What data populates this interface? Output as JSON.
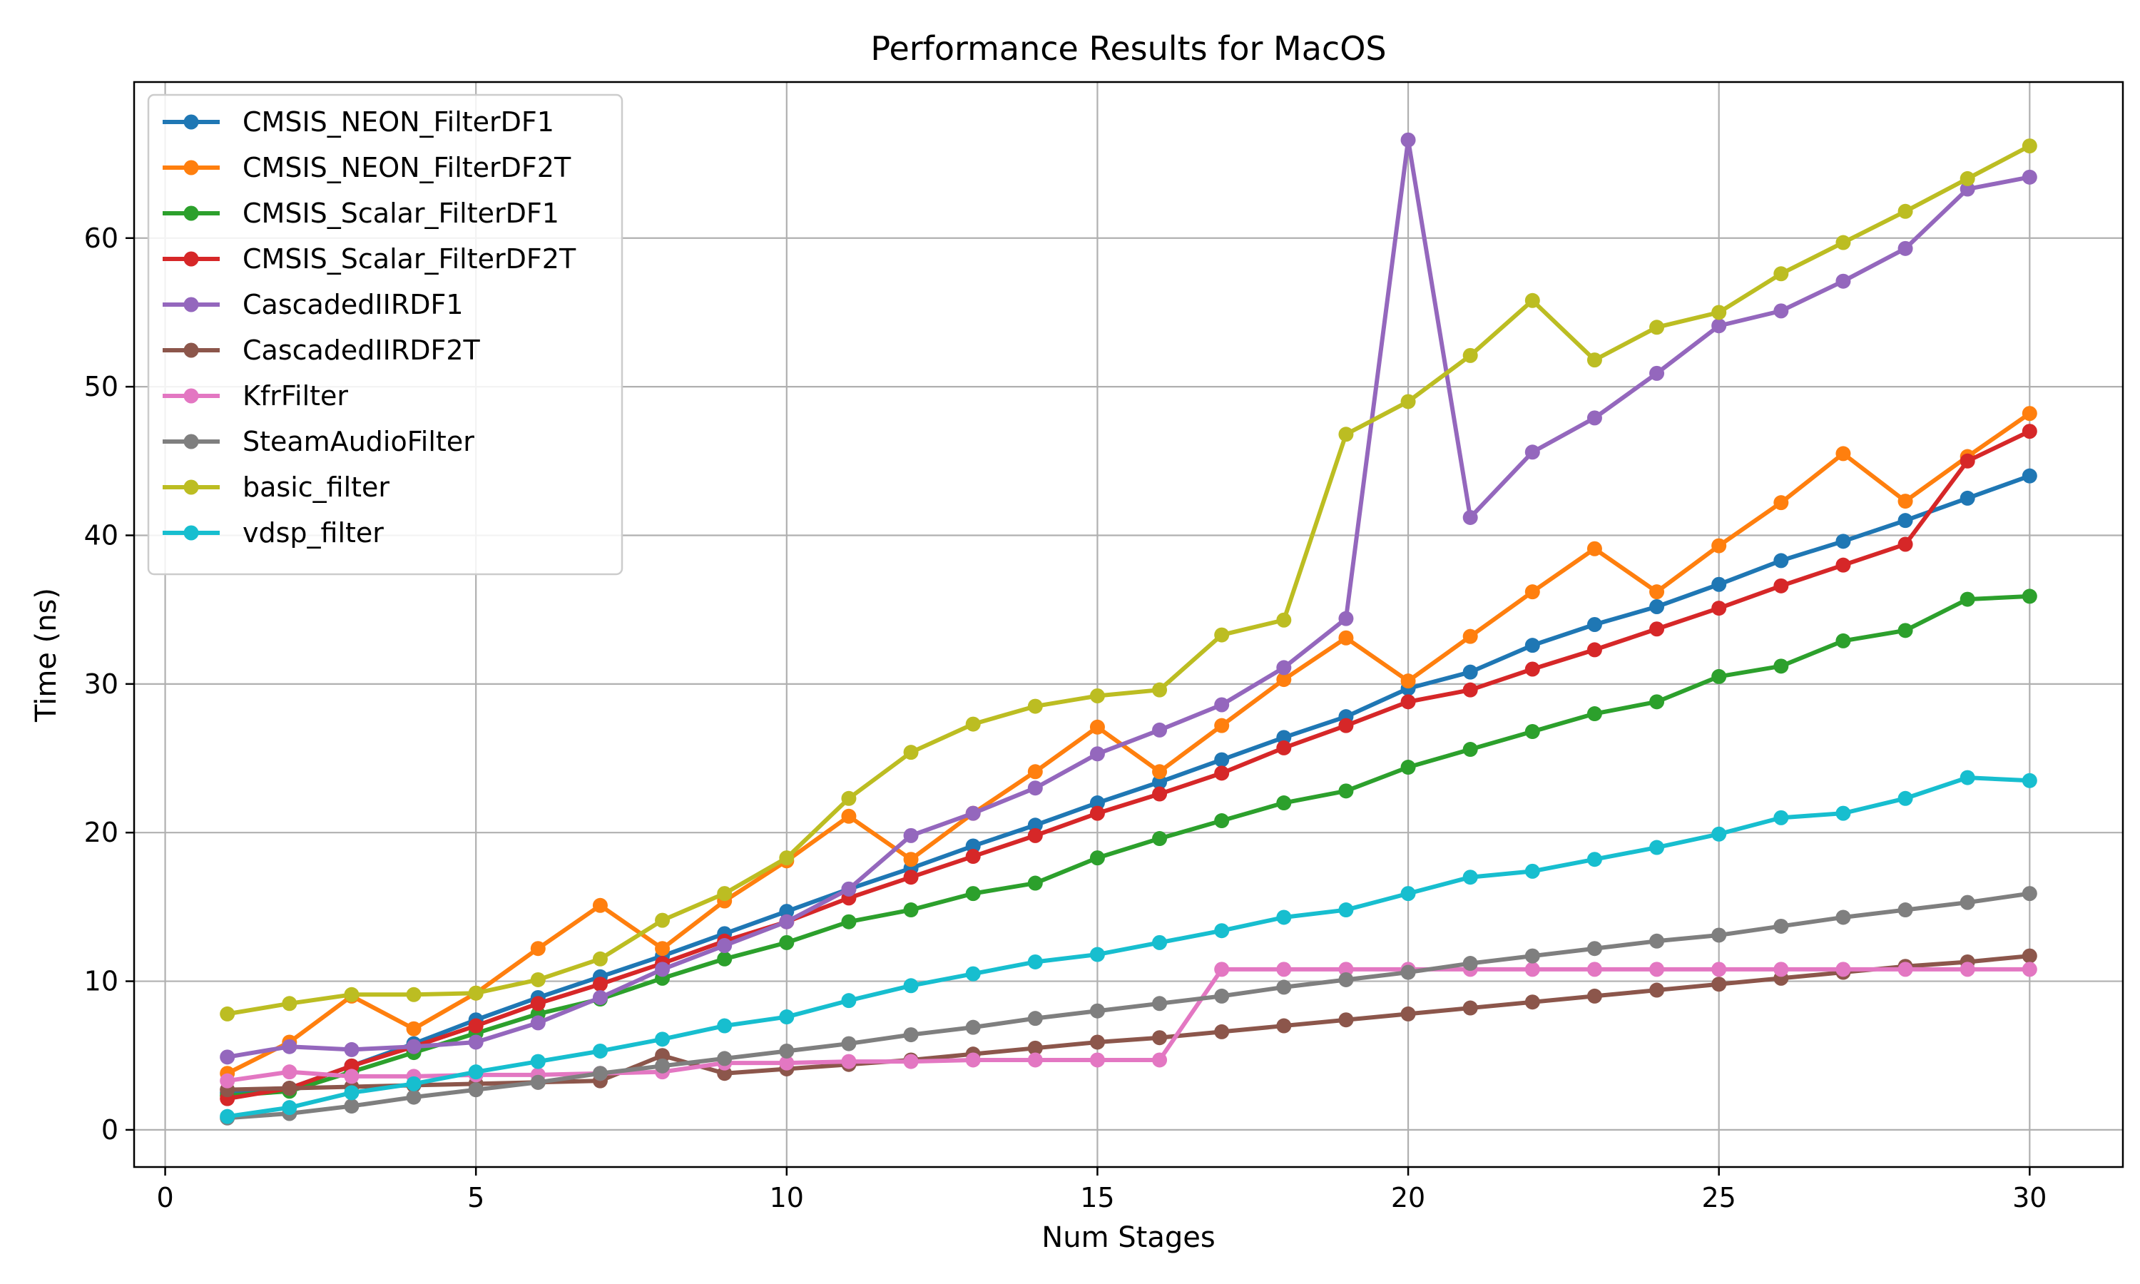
{
  "chart_data": {
    "type": "line",
    "title": "Performance Results for MacOS",
    "xlabel": "Num Stages",
    "ylabel": "Time (ns)",
    "xlim": [
      -0.5,
      31.5
    ],
    "ylim": [
      -2.5,
      70.5
    ],
    "xticks": [
      0,
      5,
      10,
      15,
      20,
      25,
      30
    ],
    "yticks": [
      0,
      10,
      20,
      30,
      40,
      50,
      60
    ],
    "grid": true,
    "legend_position": "top-left",
    "x": [
      1,
      2,
      3,
      4,
      5,
      6,
      7,
      8,
      9,
      10,
      11,
      12,
      13,
      14,
      15,
      16,
      17,
      18,
      19,
      20,
      21,
      22,
      23,
      24,
      25,
      26,
      27,
      28,
      29,
      30
    ],
    "series": [
      {
        "name": "CMSIS_NEON_FilterDF1",
        "color": "#1f77b4",
        "values": [
          2.5,
          2.8,
          4.3,
          5.8,
          7.4,
          8.9,
          10.3,
          11.7,
          13.2,
          14.7,
          16.2,
          17.6,
          19.1,
          20.5,
          22.0,
          23.4,
          24.9,
          26.4,
          27.8,
          29.7,
          30.8,
          32.6,
          34.0,
          35.2,
          36.7,
          38.3,
          39.6,
          41.0,
          42.5,
          44.0
        ]
      },
      {
        "name": "CMSIS_NEON_FilterDF2T",
        "color": "#ff7f0e",
        "values": [
          3.8,
          5.9,
          9.0,
          6.8,
          9.2,
          12.2,
          15.1,
          12.2,
          15.4,
          18.1,
          21.1,
          18.2,
          21.3,
          24.1,
          27.1,
          24.1,
          27.2,
          30.3,
          33.1,
          30.2,
          33.2,
          36.2,
          39.1,
          36.2,
          39.3,
          42.2,
          45.5,
          42.3,
          45.3,
          48.2
        ]
      },
      {
        "name": "CMSIS_Scalar_FilterDF1",
        "color": "#2ca02c",
        "values": [
          2.3,
          2.6,
          3.9,
          5.2,
          6.5,
          7.8,
          8.8,
          10.2,
          11.5,
          12.6,
          14.0,
          14.8,
          15.9,
          16.6,
          18.3,
          19.6,
          20.8,
          22.0,
          22.8,
          24.4,
          25.6,
          26.8,
          28.0,
          28.8,
          30.5,
          31.2,
          32.9,
          33.6,
          35.7,
          35.9
        ]
      },
      {
        "name": "CMSIS_Scalar_FilterDF2T",
        "color": "#d62728",
        "values": [
          2.1,
          2.8,
          4.3,
          5.6,
          7.0,
          8.5,
          9.8,
          11.2,
          12.7,
          14.0,
          15.6,
          17.0,
          18.4,
          19.8,
          21.3,
          22.6,
          24.0,
          25.7,
          27.2,
          28.8,
          29.6,
          31.0,
          32.3,
          33.7,
          35.1,
          36.6,
          38.0,
          39.4,
          45.0,
          47.0
        ]
      },
      {
        "name": "CascadedIIRDF1",
        "color": "#9467bd",
        "values": [
          4.9,
          5.6,
          5.4,
          5.6,
          5.9,
          7.2,
          8.9,
          10.8,
          12.4,
          14.0,
          16.2,
          19.8,
          21.3,
          23.0,
          25.3,
          26.9,
          28.6,
          31.1,
          34.4,
          66.6,
          41.2,
          45.6,
          47.9,
          50.9,
          54.1,
          55.1,
          57.1,
          59.3,
          63.3,
          64.1
        ]
      },
      {
        "name": "CascadedIIRDF2T",
        "color": "#8c564b",
        "values": [
          2.7,
          2.8,
          2.9,
          3.0,
          3.1,
          3.2,
          3.3,
          5.0,
          3.8,
          4.1,
          4.4,
          4.7,
          5.1,
          5.5,
          5.9,
          6.2,
          6.6,
          7.0,
          7.4,
          7.8,
          8.2,
          8.6,
          9.0,
          9.4,
          9.8,
          10.2,
          10.6,
          11.0,
          11.3,
          11.7
        ]
      },
      {
        "name": "KfrFilter",
        "color": "#e377c2",
        "values": [
          3.3,
          3.9,
          3.6,
          3.6,
          3.7,
          3.7,
          3.8,
          3.9,
          4.5,
          4.5,
          4.6,
          4.6,
          4.7,
          4.7,
          4.7,
          4.7,
          10.8,
          10.8,
          10.8,
          10.8,
          10.8,
          10.8,
          10.8,
          10.8,
          10.8,
          10.8,
          10.8,
          10.8,
          10.8,
          10.8
        ]
      },
      {
        "name": "SteamAudioFilter",
        "color": "#7f7f7f",
        "values": [
          0.8,
          1.1,
          1.6,
          2.2,
          2.7,
          3.2,
          3.8,
          4.3,
          4.8,
          5.3,
          5.8,
          6.4,
          6.9,
          7.5,
          8.0,
          8.5,
          9.0,
          9.6,
          10.1,
          10.6,
          11.2,
          11.7,
          12.2,
          12.7,
          13.1,
          13.7,
          14.3,
          14.8,
          15.3,
          15.9
        ]
      },
      {
        "name": "basic_filter",
        "color": "#bcbd22",
        "values": [
          7.8,
          8.5,
          9.1,
          9.1,
          9.2,
          10.1,
          11.5,
          14.1,
          15.9,
          18.3,
          22.3,
          25.4,
          27.3,
          28.5,
          29.2,
          29.6,
          33.3,
          34.3,
          46.8,
          49.0,
          52.1,
          55.8,
          51.8,
          54.0,
          55.0,
          57.6,
          59.7,
          61.8,
          64.0,
          66.2
        ]
      },
      {
        "name": "vdsp_filter",
        "color": "#17becf",
        "values": [
          0.9,
          1.5,
          2.5,
          3.1,
          3.9,
          4.6,
          5.3,
          6.1,
          7.0,
          7.6,
          8.7,
          9.7,
          10.5,
          11.3,
          11.8,
          12.6,
          13.4,
          14.3,
          14.8,
          15.9,
          17.0,
          17.4,
          18.2,
          19.0,
          19.9,
          21.0,
          21.3,
          22.3,
          23.7,
          23.5
        ]
      }
    ]
  }
}
